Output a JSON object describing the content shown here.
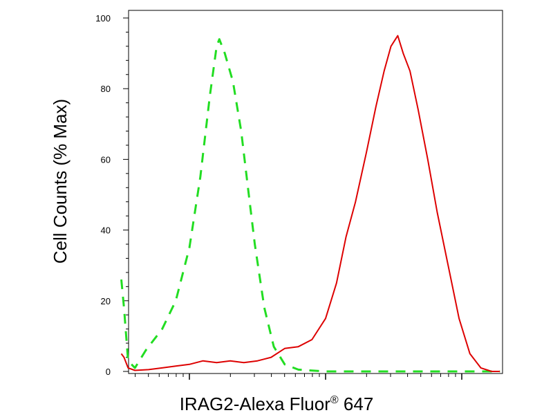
{
  "chart_data": {
    "type": "line",
    "title": "",
    "xlabel": "IRAG2-Alexa Fluor",
    "xlabel_superscript": "®",
    "xlabel_suffix": " 647",
    "ylabel": "Cell Counts (% Max)",
    "xscale": "log",
    "x_range_decades": [
      0,
      2.78
    ],
    "ylim": [
      0,
      100
    ],
    "yticks": [
      "0",
      "20",
      "40",
      "60",
      "80",
      "100"
    ],
    "grid": false,
    "legend": "none",
    "series": [
      {
        "color": "#22dd22",
        "style": "dashed",
        "points": [
          [
            0.0,
            26
          ],
          [
            0.02,
            18
          ],
          [
            0.05,
            3
          ],
          [
            0.1,
            1
          ],
          [
            0.18,
            6
          ],
          [
            0.3,
            12
          ],
          [
            0.4,
            20
          ],
          [
            0.5,
            35
          ],
          [
            0.58,
            55
          ],
          [
            0.65,
            78
          ],
          [
            0.7,
            92
          ],
          [
            0.72,
            94
          ],
          [
            0.76,
            90
          ],
          [
            0.82,
            82
          ],
          [
            0.88,
            68
          ],
          [
            0.93,
            52
          ],
          [
            0.98,
            36
          ],
          [
            1.05,
            18
          ],
          [
            1.12,
            7
          ],
          [
            1.2,
            2
          ],
          [
            1.3,
            0.5
          ],
          [
            1.5,
            0
          ],
          [
            2.78,
            0
          ]
        ]
      },
      {
        "color": "#dd0000",
        "style": "solid",
        "points": [
          [
            0.0,
            5
          ],
          [
            0.02,
            4
          ],
          [
            0.05,
            1
          ],
          [
            0.1,
            0.3
          ],
          [
            0.2,
            0.5
          ],
          [
            0.3,
            1
          ],
          [
            0.4,
            1.5
          ],
          [
            0.5,
            2
          ],
          [
            0.6,
            3
          ],
          [
            0.7,
            2.5
          ],
          [
            0.8,
            3
          ],
          [
            0.9,
            2.5
          ],
          [
            1.0,
            3
          ],
          [
            1.1,
            4
          ],
          [
            1.2,
            6.5
          ],
          [
            1.3,
            7
          ],
          [
            1.4,
            9
          ],
          [
            1.5,
            15
          ],
          [
            1.58,
            25
          ],
          [
            1.65,
            38
          ],
          [
            1.72,
            48
          ],
          [
            1.8,
            62
          ],
          [
            1.87,
            75
          ],
          [
            1.93,
            85
          ],
          [
            1.98,
            92
          ],
          [
            2.03,
            95
          ],
          [
            2.07,
            90
          ],
          [
            2.12,
            85
          ],
          [
            2.18,
            74
          ],
          [
            2.25,
            60
          ],
          [
            2.32,
            45
          ],
          [
            2.4,
            30
          ],
          [
            2.48,
            15
          ],
          [
            2.56,
            5
          ],
          [
            2.64,
            1
          ],
          [
            2.72,
            0
          ],
          [
            2.78,
            0
          ]
        ]
      }
    ]
  }
}
